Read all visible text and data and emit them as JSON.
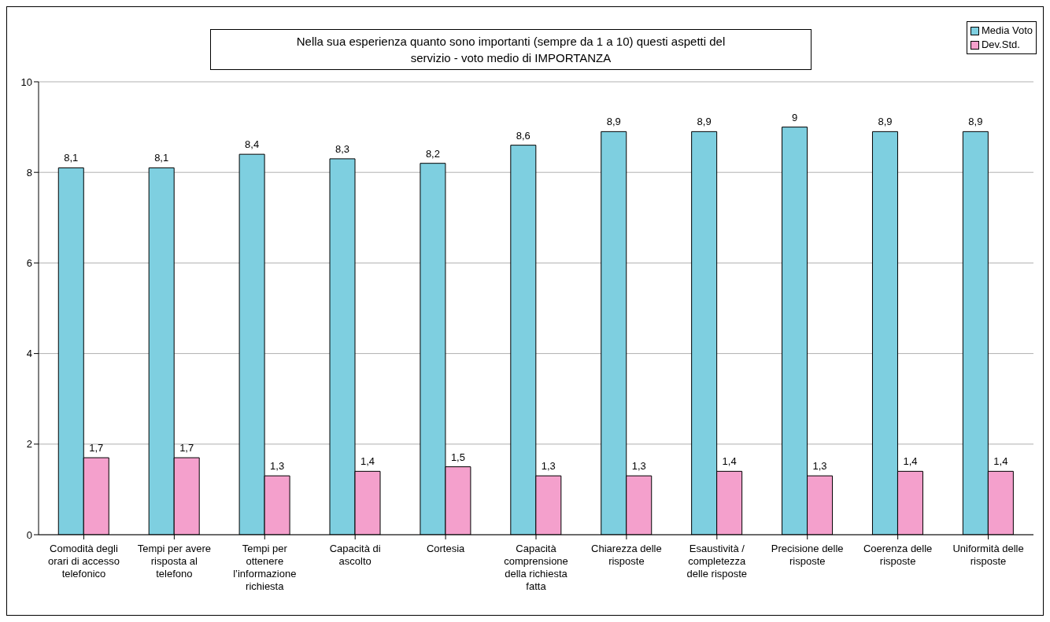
{
  "chart_data": {
    "type": "bar",
    "title": "Nella sua esperienza quanto sono importanti (sempre da 1 a 10) questi aspetti del servizio - voto medio di IMPORTANZA",
    "categories": [
      "Comodità degli orari di accesso telefonico",
      "Tempi per avere risposta al telefono",
      "Tempi per ottenere l’informazione richiesta",
      "Capacità di ascolto",
      "Cortesia",
      "Capacità comprensione della richiesta fatta",
      "Chiarezza delle risposte",
      "Esaustività / completezza delle risposte",
      "Precisione delle risposte",
      "Coerenza delle risposte",
      "Uniformità delle risposte"
    ],
    "series": [
      {
        "name": "Media Voto",
        "color": "#7ecfe0",
        "values": [
          8.1,
          8.1,
          8.4,
          8.3,
          8.2,
          8.6,
          8.9,
          8.9,
          9,
          8.9,
          8.9
        ],
        "value_labels": [
          "8,1",
          "8,1",
          "8,4",
          "8,3",
          "8,2",
          "8,6",
          "8,9",
          "8,9",
          "9",
          "8,9",
          "8,9"
        ]
      },
      {
        "name": "Dev.Std.",
        "color": "#f4a0cc",
        "values": [
          1.7,
          1.7,
          1.3,
          1.4,
          1.5,
          1.3,
          1.3,
          1.4,
          1.3,
          1.4,
          1.4
        ],
        "value_labels": [
          "1,7",
          "1,7",
          "1,3",
          "1,4",
          "1,5",
          "1,3",
          "1,3",
          "1,4",
          "1,3",
          "1,4",
          "1,4"
        ]
      }
    ],
    "ylim": [
      0,
      10
    ],
    "yticks": [
      0,
      2,
      4,
      6,
      8,
      10
    ],
    "grid": "y",
    "legend": "top right"
  }
}
